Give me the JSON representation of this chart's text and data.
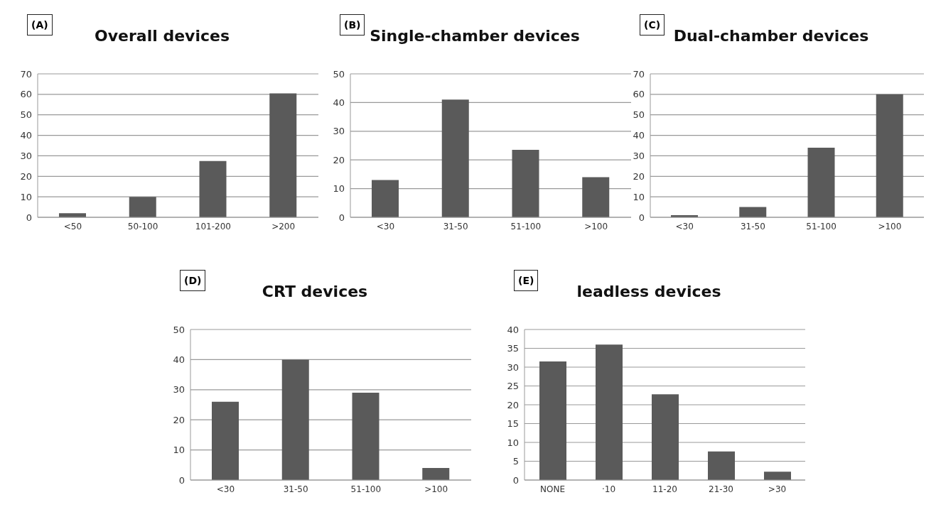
{
  "chart_data": [
    {
      "type": "bar",
      "title": "Overall devices",
      "annotations": [
        "(A)"
      ],
      "categories": [
        "<50",
        "50-100",
        "101-200",
        ">200"
      ],
      "values": [
        2,
        10,
        27.5,
        60.5
      ],
      "color": "#5a5a5a",
      "ylim": [
        0,
        70
      ],
      "yticks": [
        0,
        10,
        20,
        30,
        40,
        50,
        60,
        70
      ],
      "grid": "y"
    },
    {
      "type": "bar",
      "title": "Single-chamber devices",
      "annotations": [
        "(B)"
      ],
      "categories": [
        "<30",
        "31-50",
        "51-100",
        ">100"
      ],
      "values": [
        13,
        41,
        23.5,
        14
      ],
      "color": "#5a5a5a",
      "ylim": [
        0,
        50
      ],
      "yticks": [
        0,
        10,
        20,
        30,
        40,
        50
      ],
      "grid": "y"
    },
    {
      "type": "bar",
      "title": "Dual-chamber devices",
      "annotations": [
        "(C)"
      ],
      "categories": [
        "<30",
        "31-50",
        "51-100",
        ">100"
      ],
      "values": [
        1,
        5,
        34,
        60
      ],
      "color": "#5a5a5a",
      "ylim": [
        0,
        70
      ],
      "yticks": [
        0,
        10,
        20,
        30,
        40,
        50,
        60,
        70
      ],
      "grid": "y"
    },
    {
      "type": "bar",
      "title": "CRT devices",
      "annotations": [
        "(D)"
      ],
      "categories": [
        "<30",
        "31-50",
        "51-100",
        ">100"
      ],
      "values": [
        26,
        40,
        29,
        4
      ],
      "color": "#5a5a5a",
      "ylim": [
        0,
        50
      ],
      "yticks": [
        0,
        10,
        20,
        30,
        40,
        50
      ],
      "grid": "y"
    },
    {
      "type": "bar",
      "title": "leadless devices",
      "annotations": [
        "(E)"
      ],
      "categories": [
        "NONE",
        "·10",
        "11-20",
        "21-30",
        ">30"
      ],
      "values": [
        31.5,
        36,
        22.8,
        7.6,
        2.2
      ],
      "color": "#5a5a5a",
      "ylim": [
        0,
        40
      ],
      "yticks": [
        0,
        5,
        10,
        15,
        20,
        25,
        30,
        35,
        40
      ],
      "grid": "y"
    }
  ]
}
